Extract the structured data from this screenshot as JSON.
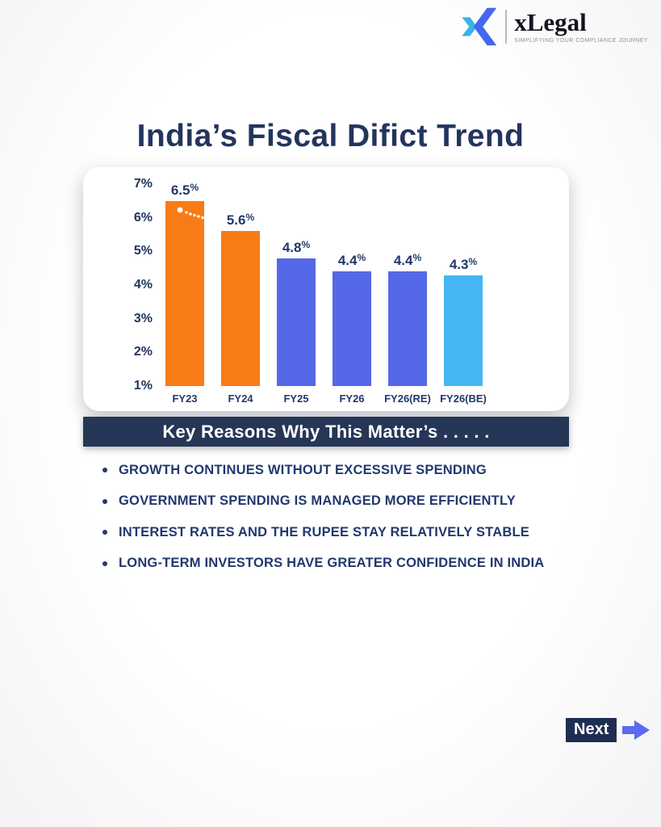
{
  "brand": {
    "name": "xLegal",
    "tagline": "SIMPLIFYING YOUR COMPLIANCE JOURNEY",
    "icon": "x-chevrons-logo",
    "icon_colors": {
      "left_chevron": "#3ab4e9",
      "right_chevron_top": "#4a74f0",
      "right_chevron_bottom": "#3c5fe9"
    }
  },
  "page": {
    "title": "India’s Fiscal Difict Trend",
    "title_color": "#23355e"
  },
  "chart_data": {
    "type": "bar",
    "title": "",
    "xlabel": "",
    "ylabel": "",
    "categories": [
      "FY23",
      "FY24",
      "FY25",
      "FY26",
      "FY26(RE)",
      "FY26(BE)"
    ],
    "values": [
      6.5,
      5.6,
      4.8,
      4.4,
      4.4,
      4.3
    ],
    "value_labels": [
      "6.5%",
      "5.6%",
      "4.8%",
      "4.4%",
      "4.4%",
      "4.3%"
    ],
    "bar_colors": [
      "#f97b16",
      "#f97b16",
      "#5468e8",
      "#5468e8",
      "#5468e8",
      "#45b6f2"
    ],
    "y_ticks": [
      "7%",
      "6%",
      "5%",
      "4%",
      "3%",
      "2%",
      "1%"
    ],
    "ylim": [
      1,
      7
    ],
    "grid": false,
    "legend": "none",
    "annotations": [
      "white dotted declining arc decoration at top of FY23 bar"
    ]
  },
  "banner": {
    "label": "Key Reasons Why This Matter’s . . . . .",
    "background": "#263656",
    "text_color": "#ffffff"
  },
  "bullets": [
    "GROWTH CONTINUES WITHOUT EXCESSIVE SPENDING",
    "GOVERNMENT SPENDING IS MANAGED MORE EFFICIENTLY",
    "INTEREST RATES AND THE RUPEE STAY RELATIVELY STABLE",
    "LONG-TERM INVESTORS HAVE GREATER CONFIDENCE IN INDIA"
  ],
  "pagination": {
    "next_label": "Next",
    "button_background": "#1e2e52",
    "arrow_color": "#5b6af0"
  }
}
